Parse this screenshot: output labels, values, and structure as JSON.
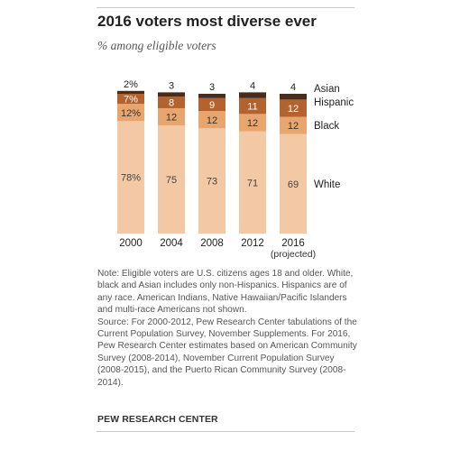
{
  "title": "2016 voters most diverse ever",
  "subtitle": "% among eligible voters",
  "chart_data": {
    "type": "bar",
    "stacked": true,
    "categories": [
      "2000",
      "2004",
      "2008",
      "2012",
      "2016"
    ],
    "category_sublabels": [
      "",
      "",
      "",
      "",
      "(projected)"
    ],
    "series": [
      {
        "name": "White",
        "values": [
          78,
          75,
          73,
          71,
          69
        ],
        "labels": [
          "78%",
          "75",
          "73",
          "71",
          "69"
        ],
        "color": "#f3c9a5",
        "label_color": "#444444"
      },
      {
        "name": "Black",
        "values": [
          12,
          12,
          12,
          12,
          12
        ],
        "labels": [
          "12%",
          "12",
          "12",
          "12",
          "12"
        ],
        "color": "#e9a56e",
        "label_color": "#333333"
      },
      {
        "name": "Hispanic",
        "values": [
          7,
          8,
          9,
          11,
          12
        ],
        "labels": [
          "7%",
          "8",
          "9",
          "11",
          "12"
        ],
        "color": "#b4632f",
        "label_color": "#ffffff"
      },
      {
        "name": "Asian",
        "values": [
          2,
          3,
          3,
          4,
          4
        ],
        "labels": [
          "2%",
          "3",
          "3",
          "4",
          "4"
        ],
        "color": "#4a2c1a",
        "label_color": "#222222"
      }
    ],
    "legend_position": "right",
    "grid": false
  },
  "note": "Note: Eligible voters are U.S. citizens ages 18 and older. White, black and Asian includes only non-Hispanics. Hispanics are of any race. American Indians, Native Hawaiian/Pacific Islanders and multi-race Americans not shown.",
  "source": "Source: For 2000-2012, Pew Research Center tabulations of the Current Population Survey, November Supplements. For 2016, Pew Research Center estimates based on American Community Survey (2008-2014), November Current Population Survey (2008-2015), and the Puerto Rican Community Survey (2008-2014).",
  "source_label": "PEW RESEARCH CENTER"
}
